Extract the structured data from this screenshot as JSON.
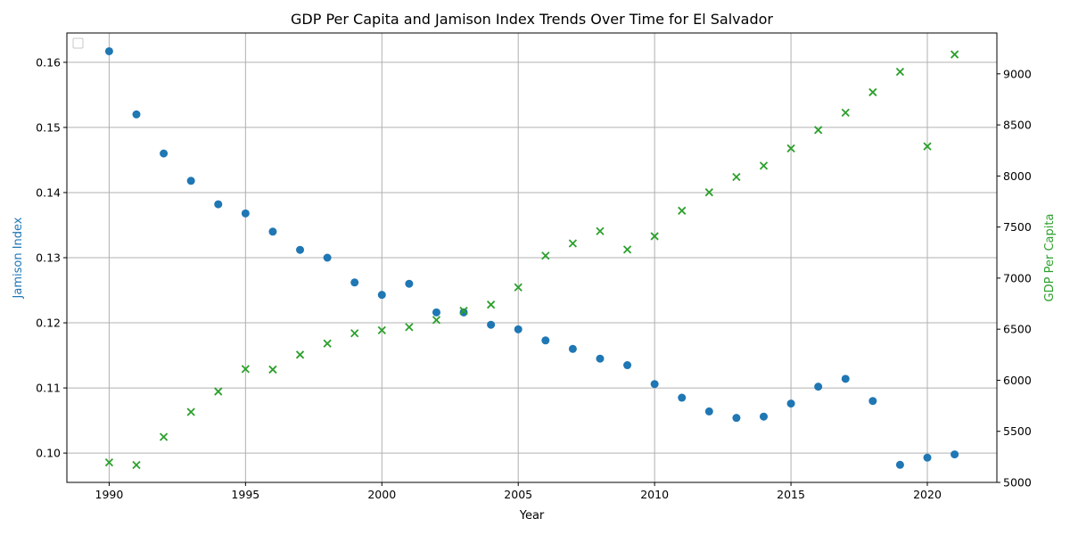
{
  "chart_data": {
    "type": "scatter",
    "title": "GDP Per Capita and Jamison Index Trends Over Time for El Salvador",
    "xlabel": "Year",
    "ylabel_left": "Jamison Index",
    "ylabel_right": "GDP Per Capita",
    "xlim": [
      1988.45,
      2022.55
    ],
    "ylim_left": [
      0.0955,
      0.1645
    ],
    "ylim_right": [
      5000,
      9400
    ],
    "x_ticks": [
      1990,
      1995,
      2000,
      2005,
      2010,
      2015,
      2020
    ],
    "y_ticks_left": [
      0.1,
      0.11,
      0.12,
      0.13,
      0.14,
      0.15,
      0.16
    ],
    "y_ticks_right": [
      5000,
      5500,
      6000,
      6500,
      7000,
      7500,
      8000,
      8500,
      9000
    ],
    "grid": true,
    "legend": "top-left",
    "colors": {
      "jamison": "#1f77b4",
      "gdp": "#2ca02c"
    },
    "series": [
      {
        "axis": "left",
        "marker": "circle",
        "x": [
          1990,
          1991,
          1992,
          1993,
          1994,
          1995,
          1996,
          1997,
          1998,
          1999,
          2000,
          2001,
          2002,
          2003,
          2004,
          2005,
          2006,
          2007,
          2008,
          2009,
          2010,
          2011,
          2012,
          2013,
          2014,
          2015,
          2016,
          2017,
          2018,
          2019,
          2020,
          2021
        ],
        "values": [
          0.1617,
          0.152,
          0.146,
          0.1418,
          0.1382,
          0.1368,
          0.134,
          0.1312,
          0.13,
          0.1262,
          0.1243,
          0.126,
          0.1216,
          0.1216,
          0.1197,
          0.119,
          0.1173,
          0.116,
          0.1145,
          0.1135,
          0.1106,
          0.1085,
          0.1064,
          0.1054,
          0.1056,
          0.1076,
          0.1102,
          0.1114,
          0.108,
          0.0982,
          0.0993,
          0.0998
        ]
      },
      {
        "axis": "right",
        "marker": "x",
        "x": [
          1990,
          1991,
          1992,
          1993,
          1994,
          1995,
          1996,
          1997,
          1998,
          1999,
          2000,
          2001,
          2002,
          2003,
          2004,
          2005,
          2006,
          2007,
          2008,
          2009,
          2010,
          2011,
          2012,
          2013,
          2014,
          2015,
          2016,
          2017,
          2018,
          2019,
          2020,
          2021
        ],
        "values": [
          5195,
          5170,
          5445,
          5690,
          5890,
          6110,
          6105,
          6250,
          6360,
          6460,
          6490,
          6520,
          6590,
          6680,
          6740,
          6910,
          7220,
          7340,
          7460,
          7280,
          7410,
          7660,
          7840,
          7990,
          8100,
          8270,
          8450,
          8620,
          8820,
          9020,
          8290,
          9190
        ]
      }
    ]
  }
}
